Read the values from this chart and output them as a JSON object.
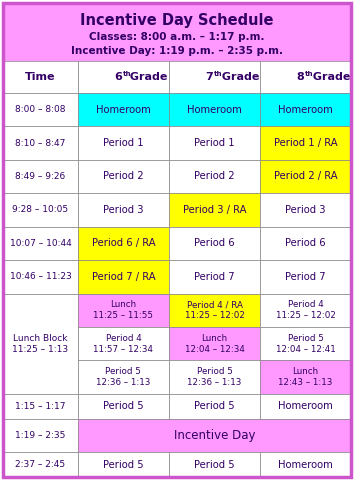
{
  "title_line1": "Incentive Day Schedule",
  "title_line2": "Classes: 8:00 a.m. – 1:17 p.m.",
  "title_line3": "Incentive Day: 1:19 p.m. – 2:35 p.m.",
  "header_bg": "#FF99FF",
  "cyan_bg": "#00FFFF",
  "yellow_bg": "#FFFF00",
  "pink_bg": "#FF99FF",
  "white_bg": "#FFFFFF",
  "border_color": "#999999",
  "outer_border": "#CC55CC",
  "text_color": "#330066",
  "col_headers": [
    "Time",
    "6",
    "7",
    "8"
  ],
  "rows": [
    {
      "time": "8:00 – 8:08",
      "cells": [
        {
          "text": "Homeroom",
          "bg": "#00FFFF"
        },
        {
          "text": "Homeroom",
          "bg": "#00FFFF"
        },
        {
          "text": "Homeroom",
          "bg": "#00FFFF"
        }
      ]
    },
    {
      "time": "8:10 – 8:47",
      "cells": [
        {
          "text": "Period 1",
          "bg": "#FFFFFF"
        },
        {
          "text": "Period 1",
          "bg": "#FFFFFF"
        },
        {
          "text": "Period 1 / RA",
          "bg": "#FFFF00"
        }
      ]
    },
    {
      "time": "8:49 – 9:26",
      "cells": [
        {
          "text": "Period 2",
          "bg": "#FFFFFF"
        },
        {
          "text": "Period 2",
          "bg": "#FFFFFF"
        },
        {
          "text": "Period 2 / RA",
          "bg": "#FFFF00"
        }
      ]
    },
    {
      "time": "9:28 – 10:05",
      "cells": [
        {
          "text": "Period 3",
          "bg": "#FFFFFF"
        },
        {
          "text": "Period 3 / RA",
          "bg": "#FFFF00"
        },
        {
          "text": "Period 3",
          "bg": "#FFFFFF"
        }
      ]
    },
    {
      "time": "10:07 – 10:44",
      "cells": [
        {
          "text": "Period 6 / RA",
          "bg": "#FFFF00"
        },
        {
          "text": "Period 6",
          "bg": "#FFFFFF"
        },
        {
          "text": "Period 6",
          "bg": "#FFFFFF"
        }
      ]
    },
    {
      "time": "10:46 – 11:23",
      "cells": [
        {
          "text": "Period 7 / RA",
          "bg": "#FFFF00"
        },
        {
          "text": "Period 7",
          "bg": "#FFFFFF"
        },
        {
          "text": "Period 7",
          "bg": "#FFFFFF"
        }
      ]
    },
    {
      "time": "Lunch Block\n11:25 – 1:13",
      "is_lunch": true,
      "subcells": [
        [
          {
            "text": "Lunch\n11:25 – 11:55",
            "bg": "#FF99FF"
          },
          {
            "text": "Period 4 / RA\n11:25 – 12:02",
            "bg": "#FFFF00"
          },
          {
            "text": "Period 4\n11:25 – 12:02",
            "bg": "#FFFFFF"
          }
        ],
        [
          {
            "text": "Period 4\n11:57 – 12:34",
            "bg": "#FFFFFF"
          },
          {
            "text": "Lunch\n12:04 – 12:34",
            "bg": "#FF99FF"
          },
          {
            "text": "Period 5\n12:04 – 12:41",
            "bg": "#FFFFFF"
          }
        ],
        [
          {
            "text": "Period 5\n12:36 – 1:13",
            "bg": "#FFFFFF"
          },
          {
            "text": "Period 5\n12:36 – 1:13",
            "bg": "#FFFFFF"
          },
          {
            "text": "Lunch\n12:43 – 1:13",
            "bg": "#FF99FF"
          }
        ]
      ]
    },
    {
      "time": "1:15 – 1:17",
      "cells": [
        {
          "text": "Period 5",
          "bg": "#FFFFFF"
        },
        {
          "text": "Period 5",
          "bg": "#FFFFFF"
        },
        {
          "text": "Homeroom",
          "bg": "#FFFFFF"
        }
      ]
    },
    {
      "time": "1:19 – 2:35",
      "is_incentive": true,
      "cells": [
        {
          "text": "Incentive Day",
          "bg": "#FF99FF",
          "colspan": 3
        }
      ]
    },
    {
      "time": "2:37 – 2:45",
      "cells": [
        {
          "text": "Period 5",
          "bg": "#FFFFFF"
        },
        {
          "text": "Period 5",
          "bg": "#FFFFFF"
        },
        {
          "text": "Homeroom",
          "bg": "#FFFFFF"
        }
      ]
    }
  ]
}
